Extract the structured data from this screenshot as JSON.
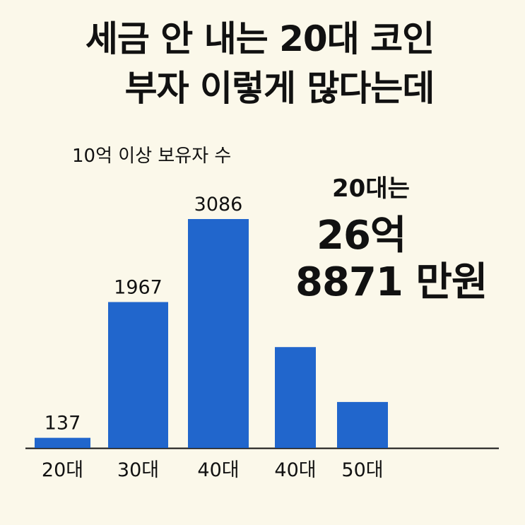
{
  "header": {
    "title_line1": "세금 안 내는 20대 코인",
    "title_line2": "부자 이렇게 많다는데"
  },
  "callout": {
    "line1": "20대는",
    "line2": "26억",
    "line3": "8871 만원"
  },
  "colors": {
    "bar": "#2166cc",
    "background": "#fbf8ea",
    "axis": "#111111"
  },
  "chart_data": {
    "type": "bar",
    "title": "10억 이상 보유자 수",
    "xlabel": "",
    "ylabel": "",
    "categories": [
      "20대",
      "30대",
      "40대",
      "40대",
      "50대"
    ],
    "values": [
      137,
      1967,
      3086,
      1360,
      620
    ],
    "data_labels": [
      "137",
      "1967",
      "3086",
      "",
      ""
    ],
    "ylim": [
      0,
      3500
    ],
    "grid": false,
    "legend": "none"
  }
}
